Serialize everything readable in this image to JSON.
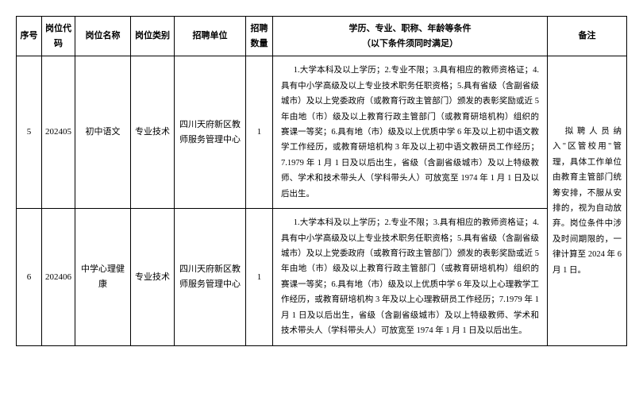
{
  "headers": {
    "seq": "序号",
    "code": "岗位代码",
    "name": "岗位名称",
    "type": "岗位类别",
    "unit": "招聘单位",
    "count": "招聘数量",
    "reqLine1": "学历、专业、职称、年龄等条件",
    "reqLine2": "（以下条件须同时满足）",
    "note": "备注"
  },
  "rows": [
    {
      "seq": "5",
      "code": "202405",
      "name": "初中语文",
      "type": "专业技术",
      "unit": "四川天府新区教师服务管理中心",
      "count": "1",
      "req": "1.大学本科及以上学历；2.专业不限；3.具有相应的教师资格证；4.具有中小学高级及以上专业技术职务任职资格；5.具有省级（含副省级城市）及以上党委政府（或教育行政主管部门）颁发的表彰奖励或近 5 年由地（市）级及以上教育行政主管部门（或教育研培机构）组织的赛课一等奖；6.具有地（市）级及以上优质中学 6 年及以上初中语文教学工作经历，或教育研培机构 3 年及以上初中语文教研员工作经历；7.1979 年 1 月 1 日及以后出生，省级（含副省级城市）及以上特级教师、学术和技术带头人（学科带头人）可放宽至 1974 年 1 月 1 日及以后出生。"
    },
    {
      "seq": "6",
      "code": "202406",
      "name": "中学心理健康",
      "type": "专业技术",
      "unit": "四川天府新区教师服务管理中心",
      "count": "1",
      "req": "1.大学本科及以上学历；2.专业不限；3.具有相应的教师资格证；4.具有中小学高级及以上专业技术职务任职资格；5.具有省级（含副省级城市）及以上党委政府（或教育行政主管部门）颁发的表彰奖励或近 5 年由地（市）级及以上教育行政主管部门（或教育研培机构）组织的赛课一等奖；6.具有地（市）级及以上优质中学 6 年及以上心理教学工作经历，或教育研培机构 3 年及以上心理教研员工作经历；7.1979 年 1 月 1 日及以后出生，省级（含副省级城市）及以上特级教师、学术和技术带头人（学科带头人）可放宽至 1974 年 1 月 1 日及以后出生。"
    }
  ],
  "note": "拟聘人员纳入\"区管校用\"管理，具体工作单位由教育主管部门统筹安排，不服从安排的，视为自动放弃。岗位条件中涉及时间期限的，一律计算至 2024 年 6 月 1 日。"
}
